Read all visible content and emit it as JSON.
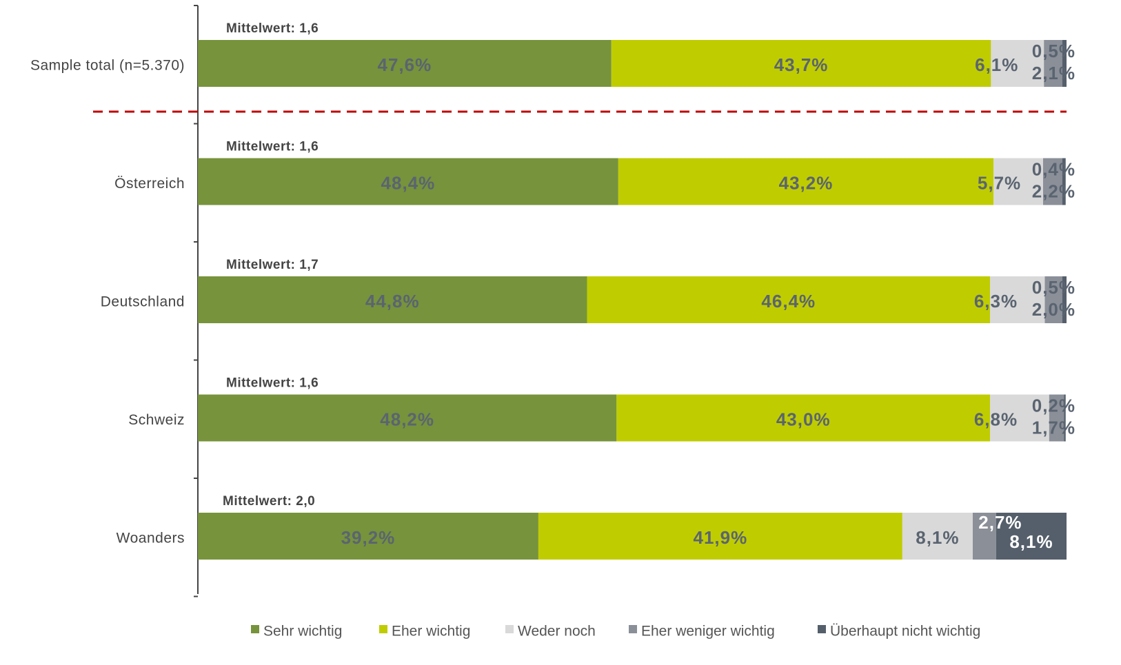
{
  "chart_data": {
    "type": "stacked_bar_horizontal",
    "categories": [
      "Sample total (n=5.370)",
      "Österreich",
      "Deutschland",
      "Schweiz",
      "Woanders"
    ],
    "annotations": [
      "Mittelwert: 1,6",
      "Mittelwert: 1,6",
      "Mittelwert: 1,7",
      "Mittelwert: 1,6",
      "Mittelwert: 2,0"
    ],
    "xlim": [
      0,
      100
    ],
    "series": [
      {
        "name": "Sehr wichtig",
        "color": "#77933c",
        "values": [
          47.6,
          48.4,
          44.8,
          48.2,
          39.2
        ],
        "value_labels": [
          "47,6%",
          "48,4%",
          "44,8%",
          "48,2%",
          "39,2%"
        ]
      },
      {
        "name": "Eher wichtig",
        "color": "#bfcc00",
        "values": [
          43.7,
          43.2,
          46.4,
          43.0,
          41.9
        ],
        "value_labels": [
          "43,7%",
          "43,2%",
          "46,4%",
          "43,0%",
          "41,9%"
        ]
      },
      {
        "name": "Weder noch",
        "color": "#d9d9d9",
        "values": [
          6.1,
          5.7,
          6.3,
          6.8,
          8.1
        ],
        "value_labels": [
          "6,1%",
          "5,7%",
          "6,3%",
          "6,8%",
          "8,1%"
        ]
      },
      {
        "name": "Eher weniger wichtig",
        "color": "#8a8f98",
        "values": [
          2.1,
          2.2,
          2.0,
          1.7,
          2.7
        ],
        "value_labels": [
          "2,1%",
          "2,2%",
          "2,0%",
          "1,7%",
          "2,7%"
        ]
      },
      {
        "name": "Überhaupt nicht wichtig",
        "color": "#555f6b",
        "values": [
          0.5,
          0.4,
          0.5,
          0.2,
          8.1
        ],
        "value_labels": [
          "0,5%",
          "0,4%",
          "0,5%",
          "0,2%",
          "8,1%"
        ]
      }
    ]
  }
}
